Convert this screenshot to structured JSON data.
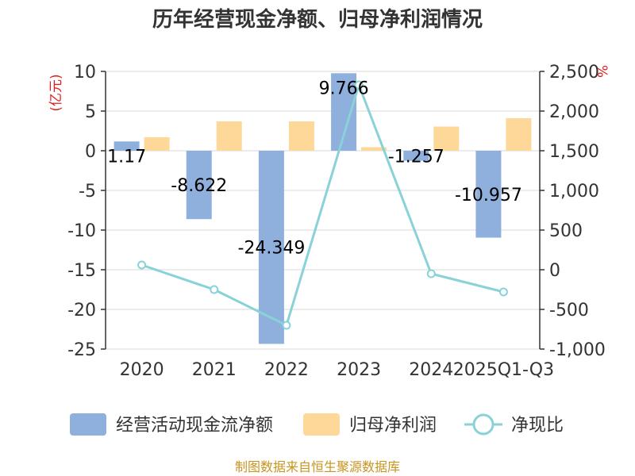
{
  "chart_data": {
    "type": "bar",
    "title": "历年经营现金净额、归母净利润情况",
    "categories": [
      "2020",
      "2021",
      "2022",
      "2023",
      "2024",
      "2025Q1-Q3"
    ],
    "series": [
      {
        "name": "经营活动现金流净额",
        "type": "bar",
        "axis": "left",
        "values": [
          1.17,
          -8.622,
          -24.349,
          9.766,
          -1.257,
          -10.957
        ],
        "labels": [
          "1.17",
          "-8.622",
          "-24.349",
          "9.766",
          "-1.257",
          "-10.957"
        ],
        "color": "#8fafdc"
      },
      {
        "name": "归母净利润",
        "type": "bar",
        "axis": "left",
        "values": [
          1.7,
          3.7,
          3.7,
          0.45,
          3.05,
          4.1
        ],
        "color": "#fdd898"
      },
      {
        "name": "净现比",
        "type": "line",
        "axis": "right",
        "values": [
          60,
          -250,
          -700,
          2330,
          -50,
          -280
        ],
        "color": "#89d2d8"
      }
    ],
    "y_left": {
      "unit": "(亿元)",
      "ylim": [
        -25,
        10
      ],
      "ticks": [
        "10",
        "5",
        "0",
        "-5",
        "-10",
        "-15",
        "-20",
        "-25"
      ]
    },
    "y_right": {
      "unit": "%",
      "ylim": [
        -1000,
        2500
      ],
      "ticks": [
        "2,500",
        "2,000",
        "1,500",
        "1,000",
        "500",
        "0",
        "-500",
        "-1,000"
      ]
    },
    "grid": true,
    "legend_position": "bottom",
    "unit_color": "#e02020"
  },
  "source": {
    "text": "制图数据来自恒生聚源数据库",
    "color": "#c8941e"
  }
}
